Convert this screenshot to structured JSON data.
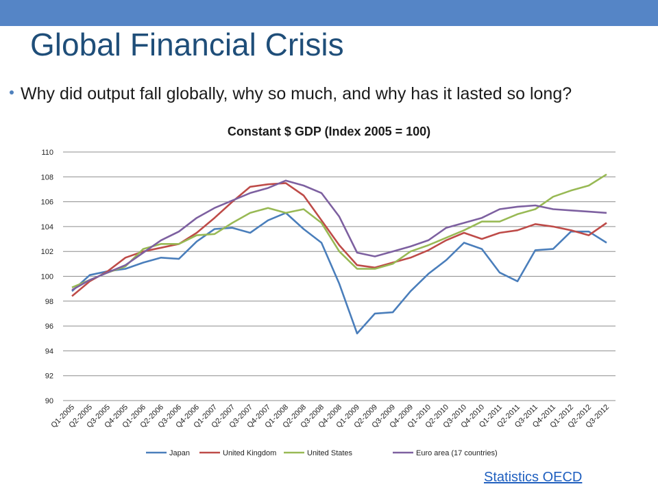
{
  "slide": {
    "title": "Global Financial Crisis",
    "bullet": "Why did output fall globally, why so much, and why has it lasted so long?",
    "source_link": "Statistics OECD",
    "accent_color": "#5585c6",
    "title_color": "#1f4e79"
  },
  "chart_data": {
    "type": "line",
    "title": "Constant $ GDP (Index 2005 = 100)",
    "xlabel": "",
    "ylabel": "",
    "ylim": [
      90,
      110
    ],
    "yticks": [
      90,
      92,
      94,
      96,
      98,
      100,
      102,
      104,
      106,
      108,
      110
    ],
    "grid": true,
    "legend_position": "bottom",
    "categories": [
      "Q1-2005",
      "Q2-2005",
      "Q3-2005",
      "Q4-2005",
      "Q1-2006",
      "Q2-2006",
      "Q3-2006",
      "Q4-2006",
      "Q1-2007",
      "Q2-2007",
      "Q3-2007",
      "Q4-2007",
      "Q1-2008",
      "Q2-2008",
      "Q3-2008",
      "Q4-2008",
      "Q1-2009",
      "Q2-2009",
      "Q3-2009",
      "Q4-2009",
      "Q1-2010",
      "Q2-2010",
      "Q3-2010",
      "Q4-2010",
      "Q1-2011",
      "Q2-2011",
      "Q3-2011",
      "Q4-2011",
      "Q1-2012",
      "Q2-2012",
      "Q3-2012"
    ],
    "series": [
      {
        "name": "Japan",
        "color": "#4a7ebb",
        "values": [
          98.8,
          100.1,
          100.4,
          100.6,
          101.1,
          101.5,
          101.4,
          102.8,
          103.8,
          103.9,
          103.5,
          104.5,
          105.1,
          103.8,
          102.7,
          99.4,
          95.4,
          97.0,
          97.1,
          98.8,
          100.2,
          101.3,
          102.7,
          102.2,
          100.3,
          99.6,
          102.1,
          102.2,
          103.6,
          103.6,
          102.7
        ]
      },
      {
        "name": "United Kingdom",
        "color": "#be4b48",
        "values": [
          98.4,
          99.6,
          100.4,
          101.5,
          102.0,
          102.3,
          102.6,
          103.5,
          104.7,
          106.0,
          107.2,
          107.4,
          107.5,
          106.5,
          104.5,
          102.5,
          100.9,
          100.7,
          101.1,
          101.5,
          102.1,
          102.9,
          103.5,
          103.0,
          103.5,
          103.7,
          104.2,
          104.0,
          103.7,
          103.3,
          104.3
        ]
      },
      {
        "name": "United States",
        "color": "#98b954",
        "values": [
          99.1,
          99.7,
          100.3,
          100.8,
          102.2,
          102.6,
          102.6,
          103.3,
          103.4,
          104.3,
          105.1,
          105.5,
          105.1,
          105.4,
          104.3,
          102.0,
          100.6,
          100.6,
          101.0,
          102.0,
          102.5,
          103.1,
          103.7,
          104.4,
          104.4,
          105.0,
          105.4,
          106.4,
          106.9,
          107.3,
          108.2
        ]
      },
      {
        "name": "Euro area (17 countries)",
        "color": "#7d60a0",
        "values": [
          98.9,
          99.7,
          100.3,
          100.9,
          101.9,
          102.9,
          103.6,
          104.7,
          105.5,
          106.1,
          106.7,
          107.1,
          107.7,
          107.3,
          106.7,
          104.8,
          101.9,
          101.6,
          102.0,
          102.4,
          102.9,
          103.9,
          104.3,
          104.7,
          105.4,
          105.6,
          105.7,
          105.4,
          105.3,
          105.2,
          105.1
        ]
      }
    ]
  }
}
